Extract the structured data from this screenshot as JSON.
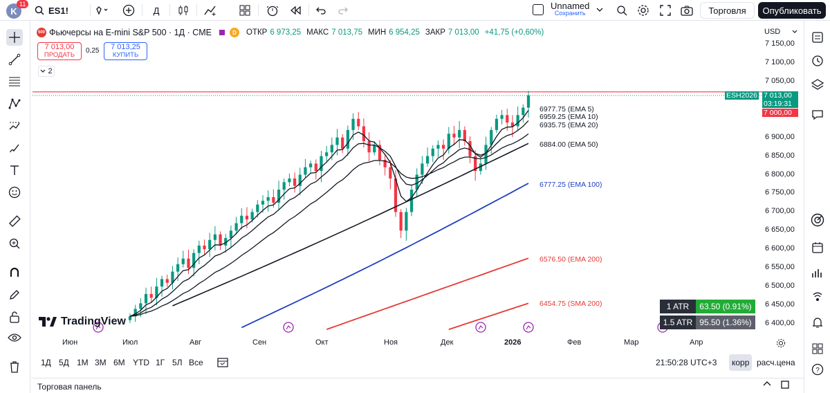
{
  "topbar": {
    "avatar_letter": "K",
    "notifications": "11",
    "symbol": "ES1!",
    "interval": "Д",
    "unnamed": "Unnamed",
    "saved": "Сохранить",
    "trade_label": "Торговля",
    "publish_label": "Опубликовать"
  },
  "legend": {
    "logo_text": "500",
    "title": "Фьючерсы на E-mini S&P 500 · 1Д · CME",
    "d_badge": "D",
    "open_label": "ОТКР",
    "open": "6 973,25",
    "high_label": "МАКС",
    "high": "7 013,75",
    "low_label": "МИН",
    "low": "6 954,25",
    "close_label": "ЗАКР",
    "close": "7 013,00",
    "change": "+41,75 (+0,60%)"
  },
  "order": {
    "sell_price": "7 013,00",
    "sell_label": "ПРОДАТЬ",
    "spread": "0,25",
    "buy_price": "7 013,25",
    "buy_label": "КУПИТЬ",
    "collapse_count": "2"
  },
  "price_axis": {
    "currency": "USD",
    "labels": [
      "7 150,00",
      "7 100,00",
      "7 050,00",
      "6 900,00",
      "6 850,00",
      "6 800,00",
      "6 750,00",
      "6 700,00",
      "6 650,00",
      "6 600,00",
      "6 550,00",
      "6 500,00",
      "6 450,00",
      "6 400,00"
    ],
    "symbol_tag": "ESH2026",
    "last_price": "7 013,00",
    "countdown": "03:19:31",
    "line_price": "7 000,00"
  },
  "time_axis": {
    "labels": [
      "Июн",
      "Июл",
      "Авг",
      "Сен",
      "Окт",
      "Ноя",
      "Дек",
      "2026",
      "Фев",
      "Мар",
      "Апр"
    ]
  },
  "indicators": {
    "ema5": "6977.75 (EMA 5)",
    "ema10": "6959.25 (EMA 10)",
    "ema20": "6935.75 (EMA 20)",
    "ema50": "6884.00 (EMA 50)",
    "ema100": "6777.25 (EMA 100)",
    "ema200": "6576.50 (EMA 200)",
    "sma200": "6454.75 (SMA 200)",
    "colors": {
      "ema_short": "#131722",
      "ema100": "#1e3fbf",
      "ema200": "#e53935",
      "up": "#089981",
      "down": "#f23645"
    }
  },
  "atr": [
    {
      "key": "1 ATR",
      "value": "63.50 (0.91%)",
      "color": "#22ab36"
    },
    {
      "key": "1.5 ATR",
      "value": "95.50 (1.36%)",
      "color": "#5d606b"
    }
  ],
  "logo": {
    "text": "TradingView"
  },
  "rangebar": {
    "ranges": [
      "1Д",
      "5Д",
      "1М",
      "3М",
      "6М",
      "YTD",
      "1Г",
      "5Л",
      "Все"
    ],
    "clock": "21:50:28 UTC+3",
    "korr": "корр",
    "rascena": "расч.цена"
  },
  "panel": {
    "title": "Торговая панель"
  },
  "chart_data": {
    "type": "candlestick",
    "title": "Фьючерсы на E-mini S&P 500 · 1Д · CME",
    "xlabel": "",
    "ylabel": "",
    "ylim": [
      6380,
      7170
    ],
    "x_ticks": [
      "Июн",
      "Июл",
      "Авг",
      "Сен",
      "Окт",
      "Ноя",
      "Дек",
      "2026",
      "Фев",
      "Мар",
      "Апр"
    ],
    "close_series": [
      6420,
      6440,
      6455,
      6480,
      6470,
      6500,
      6520,
      6510,
      6540,
      6560,
      6575,
      6550,
      6590,
      6610,
      6600,
      6625,
      6640,
      6610,
      6630,
      6650,
      6670,
      6690,
      6680,
      6700,
      6720,
      6730,
      6740,
      6725,
      6760,
      6780,
      6790,
      6770,
      6800,
      6820,
      6830,
      6810,
      6850,
      6860,
      6880,
      6900,
      6870,
      6920,
      6950,
      6930,
      6890,
      6860,
      6880,
      6840,
      6820,
      6790,
      6700,
      6650,
      6700,
      6760,
      6800,
      6830,
      6850,
      6870,
      6880,
      6870,
      6910,
      6900,
      6920,
      6890,
      6850,
      6810,
      6830,
      6880,
      6920,
      6950,
      6960,
      6940,
      6930,
      6960,
      6980,
      7013
    ],
    "lines": [
      {
        "name": "EMA 5",
        "last": 6977.75
      },
      {
        "name": "EMA 10",
        "last": 6959.25
      },
      {
        "name": "EMA 20",
        "last": 6935.75
      },
      {
        "name": "EMA 50",
        "last": 6884.0
      },
      {
        "name": "EMA 100",
        "last": 6777.25
      },
      {
        "name": "EMA 200",
        "last": 6576.5
      },
      {
        "name": "SMA 200",
        "last": 6454.75
      }
    ],
    "horizontal_line": 7000.0
  }
}
